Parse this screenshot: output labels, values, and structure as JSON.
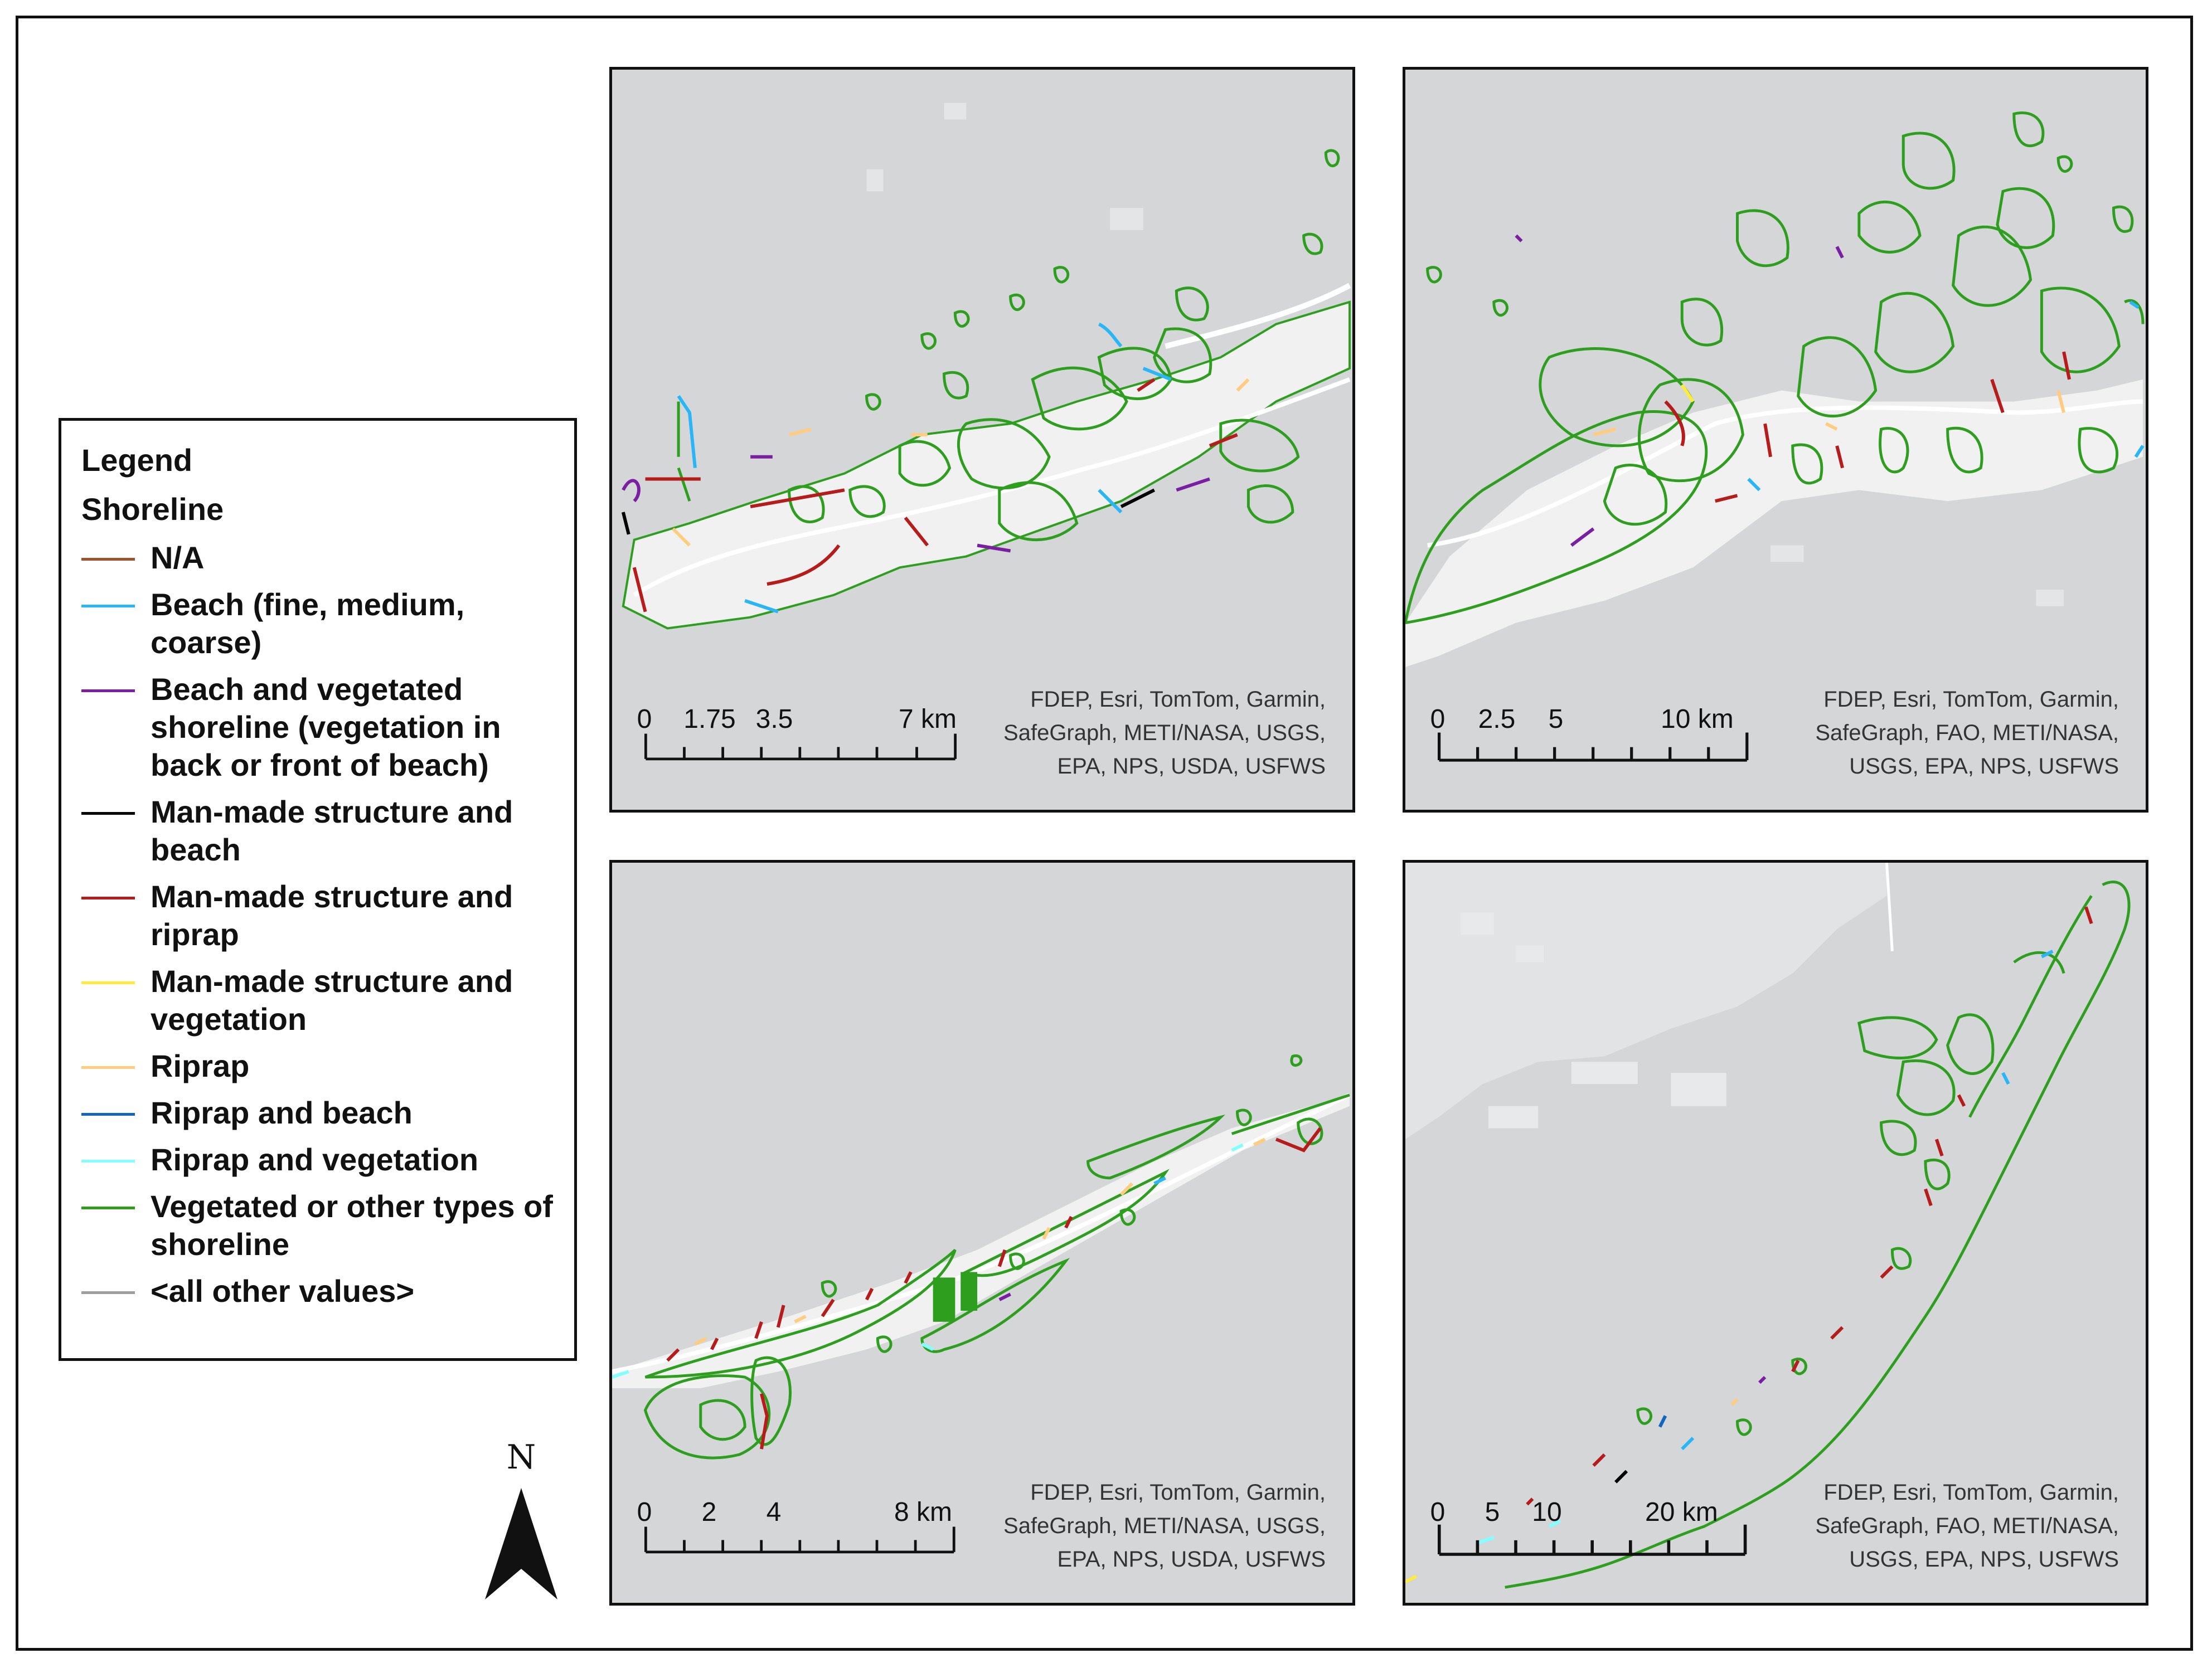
{
  "legend": {
    "title": "Legend",
    "subtitle": "Shoreline",
    "items": [
      {
        "label": "N/A",
        "color": "#a0522d"
      },
      {
        "label": "Beach (fine, medium, coarse)",
        "color": "#29b6f6"
      },
      {
        "label": "Beach and vegetated shoreline (vegetation in back or front of beach)",
        "color": "#7b1fa2"
      },
      {
        "label": "Man-made structure and beach",
        "color": "#000000"
      },
      {
        "label": "Man-made structure and riprap",
        "color": "#b71c1c"
      },
      {
        "label": "Man-made structure and vegetation",
        "color": "#ffeb3b"
      },
      {
        "label": "Riprap",
        "color": "#ffcc80"
      },
      {
        "label": "Riprap and beach",
        "color": "#1565c0"
      },
      {
        "label": "Riprap and vegetation",
        "color": "#84ffff"
      },
      {
        "label": "Vegetated or other types of shoreline",
        "color": "#2e9e1f"
      },
      {
        "label": "<all other values>",
        "color": "#9e9e9e"
      }
    ]
  },
  "north_arrow": {
    "label": "N"
  },
  "maps": [
    {
      "credits": [
        "FDEP, Esri, TomTom, Garmin,",
        "SafeGraph, METI/NASA, USGS,",
        "EPA, NPS, USDA, USFWS"
      ],
      "scale": {
        "ticks": [
          "0",
          "1.75",
          "3.5",
          "7 km"
        ],
        "values": [
          0,
          1.75,
          3.5,
          7
        ],
        "max": 7
      }
    },
    {
      "credits": [
        "FDEP, Esri, TomTom, Garmin,",
        "SafeGraph, FAO, METI/NASA,",
        "USGS, EPA, NPS, USFWS"
      ],
      "scale": {
        "ticks": [
          "0",
          "2.5",
          "5",
          "10 km"
        ],
        "values": [
          0,
          2.5,
          5,
          10
        ],
        "max": 10
      }
    },
    {
      "credits": [
        "FDEP, Esri, TomTom, Garmin,",
        "SafeGraph, METI/NASA, USGS,",
        "EPA, NPS, USDA, USFWS"
      ],
      "scale": {
        "ticks": [
          "0",
          "2",
          "4",
          "8 km"
        ],
        "values": [
          0,
          2,
          4,
          8
        ],
        "max": 8
      }
    },
    {
      "credits": [
        "FDEP, Esri, TomTom, Garmin,",
        "SafeGraph, FAO, METI/NASA,",
        "USGS, EPA, NPS, USFWS"
      ],
      "scale": {
        "ticks": [
          "0",
          "5",
          "10",
          "20 km"
        ],
        "values": [
          0,
          5,
          10,
          20
        ],
        "max": 20
      }
    }
  ]
}
